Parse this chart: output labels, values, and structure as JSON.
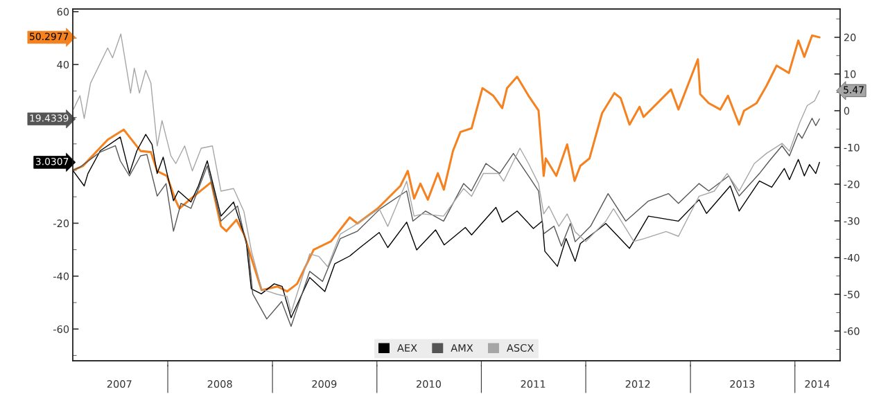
{
  "chart_data": {
    "type": "line",
    "xlim": [
      "2007-02-03",
      "2014-06-08"
    ],
    "xticks": [
      {
        "value": "2007-07-16",
        "label": "2007"
      },
      {
        "value": "2008-01-01",
        "label": null
      },
      {
        "value": "2008-07-01",
        "label": "2008"
      },
      {
        "value": "2009-01-01",
        "label": null
      },
      {
        "value": "2009-07-01",
        "label": "2009"
      },
      {
        "value": "2010-01-01",
        "label": null
      },
      {
        "value": "2010-07-01",
        "label": "2010"
      },
      {
        "value": "2011-01-01",
        "label": null
      },
      {
        "value": "2011-07-01",
        "label": "2011"
      },
      {
        "value": "2012-01-01",
        "label": null
      },
      {
        "value": "2012-07-01",
        "label": "2012"
      },
      {
        "value": "2013-01-01",
        "label": null
      },
      {
        "value": "2013-07-01",
        "label": "2013"
      },
      {
        "value": "2014-01-01",
        "label": null
      },
      {
        "value": "2014-03-20",
        "label": "2014"
      }
    ],
    "ylim": [
      -72,
      61
    ],
    "yticks": [
      {
        "value": -70,
        "label": null
      },
      -60,
      {
        "value": -50,
        "label": null
      },
      -40,
      {
        "value": -30,
        "label": null
      },
      -20,
      {
        "value": -10,
        "label": null
      },
      {
        "value": 0,
        "label": null
      },
      {
        "value": 10,
        "label": null
      },
      {
        "value": 20,
        "label": null
      },
      {
        "value": 30,
        "label": null
      },
      40,
      {
        "value": 50,
        "label": null
      },
      60
    ],
    "y2lim": [
      -68.1,
      27.7
    ],
    "y2ticks": [
      {
        "value": -65,
        "label": null
      },
      -60,
      {
        "value": -55,
        "label": null
      },
      -50,
      {
        "value": -45,
        "label": null
      },
      -40,
      {
        "value": -35,
        "label": null
      },
      -30,
      {
        "value": -25,
        "label": null
      },
      -20,
      {
        "value": -15,
        "label": null
      },
      -10,
      {
        "value": -5,
        "label": null
      },
      0,
      {
        "value": 5,
        "label": null
      },
      10,
      {
        "value": 15,
        "label": null
      },
      20,
      {
        "value": 25,
        "label": null
      }
    ],
    "legend": "bottom",
    "annotations": [
      "50.2977",
      "3.0307",
      "19.4339",
      "5.47"
    ],
    "series": [
      {
        "color": "#f58220",
        "x": [
          "2007-02-03",
          "2007-03-10",
          "2007-06-05",
          "2007-07-31",
          "2007-09-28",
          "2007-11-03",
          "2007-11-25",
          "2007-12-29",
          "2008-01-29",
          "2008-02-11",
          "2008-03-22",
          "2008-06-01",
          "2008-07-05",
          "2008-07-24",
          "2008-08-28",
          "2008-09-23",
          "2008-10-20",
          "2008-11-24",
          "2009-01-18",
          "2009-02-21",
          "2009-03-28",
          "2009-05-25",
          "2009-07-25",
          "2009-09-28",
          "2009-10-25",
          "2010-01-04",
          "2010-03-24",
          "2010-04-19",
          "2010-05-11",
          "2010-06-02",
          "2010-06-28",
          "2010-08-02",
          "2010-08-23",
          "2010-09-24",
          "2010-10-20",
          "2010-11-28",
          "2011-01-05",
          "2011-02-12",
          "2011-03-15",
          "2011-04-01",
          "2011-05-06",
          "2011-06-15",
          "2011-07-20",
          "2011-08-07",
          "2011-08-14",
          "2011-09-20",
          "2011-10-28",
          "2011-11-23",
          "2011-12-13",
          "2012-01-14",
          "2012-02-27",
          "2012-04-10",
          "2012-05-02",
          "2012-06-02",
          "2012-07-07",
          "2012-07-21",
          "2012-10-25",
          "2012-11-20",
          "2013-01-27",
          "2013-02-04",
          "2013-03-06",
          "2013-04-15",
          "2013-05-12",
          "2013-06-20",
          "2013-07-07",
          "2013-08-20",
          "2013-09-24",
          "2013-10-29",
          "2013-12-11",
          "2014-01-13",
          "2014-02-03",
          "2014-03-02",
          "2014-03-28"
        ],
        "values": [
          0,
          1.6,
          11.6,
          15.4,
          7.3,
          6.9,
          -0.3,
          -2.1,
          -11.5,
          -14.4,
          -10.7,
          -4.5,
          -21.1,
          -23,
          -18.7,
          -24,
          -33.4,
          -45.3,
          -43.9,
          -45.8,
          -42.9,
          -30,
          -26.8,
          -17.8,
          -20.1,
          -14.4,
          -5.9,
          -0.2,
          -10.7,
          -5,
          -11.1,
          -1.1,
          -7.3,
          7.4,
          14.5,
          15.9,
          31.1,
          28.2,
          23.5,
          31.1,
          35.4,
          28.2,
          22.6,
          -2.1,
          4.5,
          -2.1,
          9.8,
          -4,
          1.7,
          4.5,
          21.6,
          29.2,
          27.3,
          17.3,
          24,
          20.2,
          30.6,
          23,
          42,
          28.8,
          25.4,
          23,
          28.2,
          17.3,
          22.5,
          25.4,
          32,
          39.6,
          36.8,
          49.1,
          42.9,
          51,
          50.2977
        ]
      },
      {
        "name": "AEX",
        "color": "#000000",
        "x": [
          "2007-02-03",
          "2007-03-15",
          "2007-03-28",
          "2007-05-10",
          "2007-07-19",
          "2007-08-20",
          "2007-09-15",
          "2007-10-16",
          "2007-11-07",
          "2007-11-25",
          "2007-12-16",
          "2008-01-21",
          "2008-02-07",
          "2008-03-22",
          "2008-04-17",
          "2008-05-18",
          "2008-07-05",
          "2008-08-18",
          "2008-10-01",
          "2008-10-19",
          "2008-11-23",
          "2009-01-07",
          "2009-02-04",
          "2009-03-07",
          "2009-05-11",
          "2009-07-03",
          "2009-08-07",
          "2009-09-28",
          "2009-11-03",
          "2010-01-09",
          "2010-02-08",
          "2010-04-15",
          "2010-05-20",
          "2010-07-25",
          "2010-08-24",
          "2010-11-06",
          "2010-11-28",
          "2011-02-21",
          "2011-03-15",
          "2011-05-06",
          "2011-07-02",
          "2011-08-02",
          "2011-08-11",
          "2011-09-24",
          "2011-10-24",
          "2011-11-25",
          "2011-12-13",
          "2012-03-11",
          "2012-06-02",
          "2012-08-07",
          "2012-11-20",
          "2013-01-31",
          "2013-02-26",
          "2013-05-20",
          "2013-06-20",
          "2013-08-30",
          "2013-10-12",
          "2013-11-25",
          "2013-12-13",
          "2014-01-13",
          "2014-02-03",
          "2014-02-21",
          "2014-03-15",
          "2014-03-28"
        ],
        "values": [
          0,
          -5.9,
          -1.2,
          7.4,
          12.6,
          -1.2,
          7.4,
          13.6,
          9.8,
          -1.2,
          5,
          -11.5,
          -7.8,
          -12,
          -5.9,
          3.6,
          -17.3,
          -12,
          -26.8,
          -44.8,
          -46.7,
          -42.9,
          -43.9,
          -55.7,
          -40.5,
          -45.8,
          -35.3,
          -32.4,
          -29.2,
          -23.5,
          -29.2,
          -19.6,
          -30.1,
          -22.5,
          -28.2,
          -21.6,
          -24.4,
          -14,
          -19.6,
          -15.4,
          -22,
          -19.2,
          -30.6,
          -36.3,
          -25.8,
          -34.4,
          -27.7,
          -20.1,
          -29.5,
          -17.3,
          -19.2,
          -11.1,
          -16.3,
          -5.9,
          -15.4,
          -4,
          -6.4,
          0.7,
          -3.5,
          4.1,
          -2.1,
          2.2,
          -1.2,
          3.0307
        ]
      },
      {
        "name": "AMX",
        "color": "#555555",
        "x": [
          "2007-02-03",
          "2007-02-28",
          "2007-05-10",
          "2007-07-02",
          "2007-07-19",
          "2007-08-20",
          "2007-09-28",
          "2007-10-20",
          "2007-11-25",
          "2007-12-26",
          "2008-01-21",
          "2008-02-16",
          "2008-03-22",
          "2008-05-18",
          "2008-07-05",
          "2008-09-01",
          "2008-10-10",
          "2008-10-24",
          "2008-12-12",
          "2009-02-02",
          "2009-03-07",
          "2009-05-11",
          "2009-06-25",
          "2009-08-26",
          "2009-10-25",
          "2010-01-13",
          "2010-04-15",
          "2010-05-07",
          "2010-06-20",
          "2010-08-22",
          "2010-10-31",
          "2010-11-27",
          "2011-01-17",
          "2011-03-06",
          "2011-04-23",
          "2011-06-15",
          "2011-07-20",
          "2011-08-07",
          "2011-09-12",
          "2011-10-08",
          "2011-11-08",
          "2011-11-25",
          "2012-01-18",
          "2012-03-19",
          "2012-05-20",
          "2012-08-07",
          "2012-10-16",
          "2012-11-20",
          "2013-01-31",
          "2013-03-06",
          "2013-05-15",
          "2013-06-20",
          "2013-08-30",
          "2013-10-04",
          "2013-11-17",
          "2013-12-13",
          "2014-01-13",
          "2014-01-26",
          "2014-03-02",
          "2014-03-15",
          "2014-03-28"
        ],
        "values": [
          0,
          1.2,
          6.9,
          9.3,
          3.6,
          -2.1,
          5.5,
          6,
          -9.7,
          -5,
          -23,
          -12.5,
          -14.4,
          1.7,
          -19.2,
          -13.5,
          -31.5,
          -46.7,
          -56.2,
          -49.6,
          -59,
          -38.2,
          -42,
          -25.8,
          -23,
          -14.5,
          -7.8,
          -19.2,
          -15.4,
          -19.2,
          -5,
          -7.8,
          2.6,
          -1.2,
          6.4,
          -2.1,
          -7.8,
          -24,
          -21.1,
          -28.7,
          -20.1,
          -27,
          -21.1,
          -8.8,
          -19.2,
          -11.6,
          -8.8,
          -12.5,
          -5,
          -7.8,
          -2.1,
          -9.7,
          -1.2,
          3.6,
          9.3,
          5.5,
          14,
          12.1,
          19.7,
          16.9,
          19.4339
        ]
      },
      {
        "name": "ASCX",
        "color": "#a6a6a6",
        "axis": "y2",
        "x": [
          "2007-02-03",
          "2007-02-28",
          "2007-03-15",
          "2007-04-06",
          "2007-06-05",
          "2007-06-22",
          "2007-07-21",
          "2007-08-24",
          "2007-09-06",
          "2007-09-24",
          "2007-10-16",
          "2007-11-03",
          "2007-11-25",
          "2007-12-12",
          "2008-01-12",
          "2008-01-29",
          "2008-02-29",
          "2008-03-27",
          "2008-04-27",
          "2008-06-05",
          "2008-07-05",
          "2008-08-18",
          "2008-09-23",
          "2008-10-20",
          "2008-11-24",
          "2009-01-17",
          "2009-02-21",
          "2009-03-07",
          "2009-05-11",
          "2009-06-12",
          "2009-07-13",
          "2009-08-26",
          "2009-10-10",
          "2010-01-09",
          "2010-02-08",
          "2010-04-15",
          "2010-05-11",
          "2010-06-11",
          "2010-08-22",
          "2010-10-31",
          "2010-11-28",
          "2011-01-08",
          "2011-03-02",
          "2011-03-20",
          "2011-05-16",
          "2011-06-15",
          "2011-07-20",
          "2011-08-07",
          "2011-08-25",
          "2011-09-29",
          "2011-10-28",
          "2011-11-25",
          "2012-01-01",
          "2012-03-11",
          "2012-04-07",
          "2012-06-17",
          "2012-07-21",
          "2012-10-08",
          "2012-11-20",
          "2013-01-31",
          "2013-03-25",
          "2013-05-09",
          "2013-06-20",
          "2013-08-12",
          "2013-09-24",
          "2013-11-17",
          "2013-12-13",
          "2014-01-17",
          "2014-02-13",
          "2014-03-11",
          "2014-03-28"
        ],
        "values": [
          0,
          4.1,
          -2.1,
          7.5,
          17.1,
          14.4,
          20.9,
          4.8,
          11.6,
          4.8,
          11,
          7.5,
          -9.6,
          -2.7,
          -12.3,
          -14.4,
          -9.6,
          -16.4,
          -10.2,
          -9.6,
          -21.9,
          -21.2,
          -27.4,
          -38.4,
          -48.6,
          -50,
          -50.6,
          -55,
          -39,
          -39.7,
          -42.5,
          -33.6,
          -31.5,
          -26.7,
          -31.5,
          -19.2,
          -28.7,
          -28.1,
          -28.7,
          -21.2,
          -23.3,
          -17.1,
          -17.1,
          -19.2,
          -10.2,
          -14.4,
          -19.9,
          -28.1,
          -26,
          -31.5,
          -28.1,
          -33,
          -35.6,
          -30.1,
          -26.7,
          -35.6,
          -34.9,
          -32.9,
          -34.2,
          -23.3,
          -21.9,
          -17.1,
          -21.9,
          -14.4,
          -11.6,
          -8.9,
          -11,
          -3.4,
          1.4,
          2.7,
          5.47
        ]
      }
    ]
  }
}
